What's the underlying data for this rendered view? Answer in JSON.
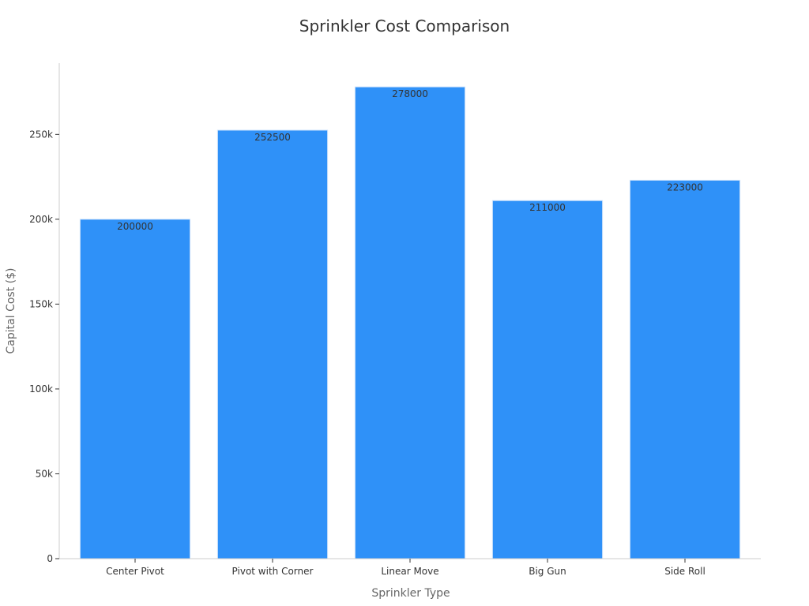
{
  "chart_data": {
    "type": "bar",
    "title": "Sprinkler Cost Comparison",
    "xlabel": "Sprinkler Type",
    "ylabel": "Capital Cost ($)",
    "categories": [
      "Center Pivot",
      "Pivot with Corner",
      "Linear Move",
      "Big Gun",
      "Side Roll"
    ],
    "values": [
      200000,
      252500,
      278000,
      211000,
      223000
    ],
    "data_labels": [
      "200000",
      "252500",
      "278000",
      "211000",
      "223000"
    ],
    "ylim": [
      0,
      292000
    ],
    "yticks": [
      0,
      50000,
      100000,
      150000,
      200000,
      250000
    ],
    "ytick_labels": [
      "0",
      "50k",
      "100k",
      "150k",
      "200k",
      "250k"
    ],
    "bar_color": "#2f91f8",
    "bar_edge_color": "#cfe3fb",
    "grid": false,
    "legend": "none"
  }
}
